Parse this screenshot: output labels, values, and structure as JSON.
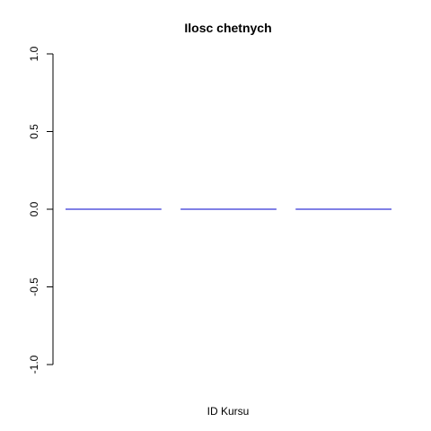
{
  "chart_data": {
    "type": "bar",
    "title": "Ilosc chetnych",
    "xlabel": "ID Kursu",
    "ylabel": "",
    "categories": [
      "",
      "",
      ""
    ],
    "values": [
      0,
      0,
      0
    ],
    "ylim": [
      -1.0,
      1.0
    ],
    "yticks": [
      "-1.0",
      "-0.5",
      "0.0",
      "0.5",
      "1.0"
    ],
    "grid": false,
    "bar_color": "#0000cd"
  }
}
